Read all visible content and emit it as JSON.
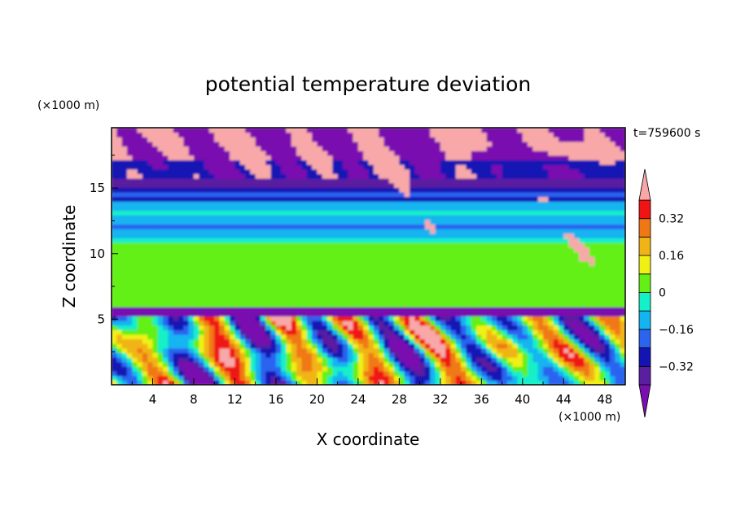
{
  "chart_data": {
    "type": "heatmap",
    "title": "potential temperature deviation",
    "xlabel": "X coordinate",
    "ylabel": "Z coordinate",
    "x_unit": "(×1000 m)",
    "y_unit": "(×1000 m)",
    "time_label": "t=759600 s",
    "xlim": [
      0,
      50
    ],
    "ylim": [
      0,
      19.6
    ],
    "x_ticks": [
      4,
      8,
      12,
      16,
      20,
      24,
      28,
      32,
      36,
      40,
      44,
      48
    ],
    "y_ticks": [
      5,
      10,
      15
    ],
    "colorbar": {
      "levels": [
        -0.4,
        -0.32,
        -0.24,
        -0.16,
        -0.08,
        0,
        0.08,
        0.16,
        0.24,
        0.32,
        0.4
      ],
      "tick_labels": [
        "0.32",
        "0.16",
        "0",
        "−0.16",
        "−0.32"
      ],
      "tick_values": [
        0.32,
        0.16,
        0,
        -0.16,
        -0.32
      ],
      "colors": [
        "#7a0fb0",
        "#5a1fa0",
        "#1414b4",
        "#2c64f0",
        "#14b4f0",
        "#14f0c8",
        "#64f014",
        "#f0f014",
        "#f0b414",
        "#f07814",
        "#f01414",
        "#f8a8a8"
      ],
      "extend": "both"
    },
    "field_description_values": {
      "layers": [
        {
          "z_range": [
            17,
            19.6
          ],
          "value": -0.45
        },
        {
          "z_range": [
            14,
            17
          ],
          "value": -0.3
        },
        {
          "z_range": [
            11,
            14
          ],
          "value": -0.12
        },
        {
          "z_range": [
            6,
            11
          ],
          "value": 0.05
        },
        {
          "z_range": [
            5.5,
            6
          ],
          "value": -0.45
        },
        {
          "z_range": [
            0,
            5.5
          ],
          "value": 0.1
        }
      ]
    }
  }
}
